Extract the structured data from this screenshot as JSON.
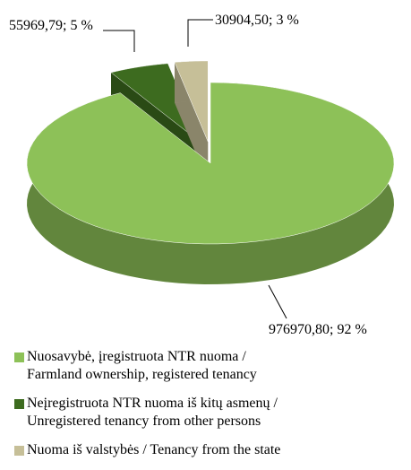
{
  "chart_data": {
    "type": "pie",
    "categories": [
      "Nuosavybė, įregistruota NTR nuoma /\nFarmland  ownership, registered tenancy",
      "Neįregistruota NTR nuoma iš kitų asmenų /\nUnregistered tenancy from other persons",
      "Nuoma iš valstybės  / Tenancy from the state"
    ],
    "values": [
      976970.8,
      55969.79,
      30904.5
    ],
    "value_labels": [
      "976970,80; 92 %",
      "55969,79;  5 %",
      "30904,50; 3 %"
    ],
    "colors": [
      "#8dc158",
      "#3d6b1f",
      "#c6bf98"
    ]
  }
}
